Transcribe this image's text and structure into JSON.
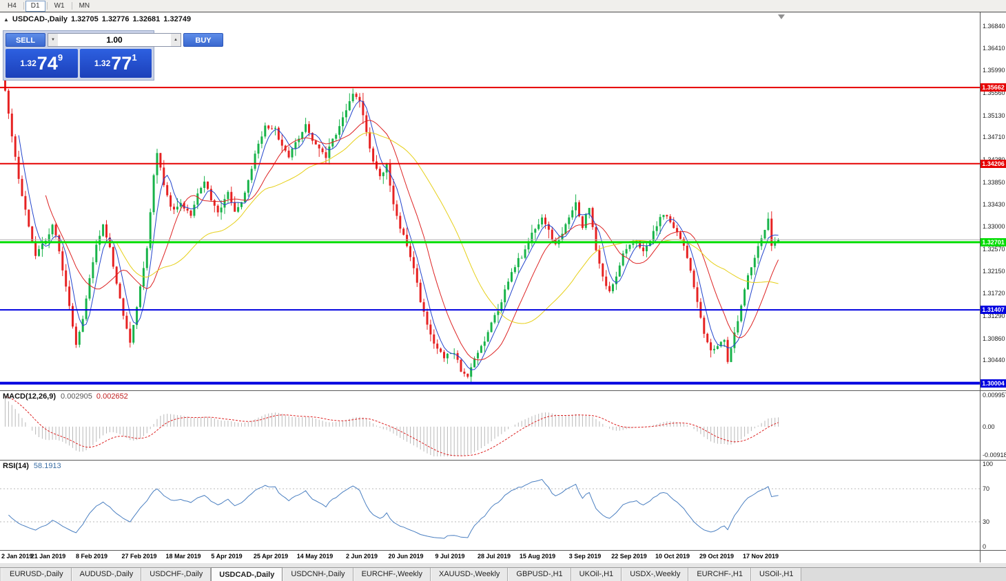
{
  "toolbar": {
    "timeframes": [
      {
        "label": "H4",
        "active": false
      },
      {
        "label": "D1",
        "active": true
      },
      {
        "label": "W1",
        "active": false
      },
      {
        "label": "MN",
        "active": false
      }
    ]
  },
  "chart": {
    "title": "USDCAD-,Daily",
    "ohlc": {
      "open": "1.32705",
      "high": "1.32776",
      "low": "1.32681",
      "close": "1.32749"
    },
    "scale": {
      "top": 1.371,
      "bottom": 1.2988
    },
    "bid_price": 1.32749,
    "price_axis_labels": [
      "1.36840",
      "1.36410",
      "1.35990",
      "1.35560",
      "1.35130",
      "1.34710",
      "1.34280",
      "1.33850",
      "1.33430",
      "1.33000",
      "1.32570",
      "1.32150",
      "1.31720",
      "1.31290",
      "1.30860",
      "1.30440"
    ]
  },
  "trade": {
    "sell_label": "SELL",
    "buy_label": "BUY",
    "volume": "1.00",
    "sell": {
      "prefix": "1.32",
      "big": "74",
      "pip": "9"
    },
    "buy": {
      "prefix": "1.32",
      "big": "77",
      "pip": "1"
    }
  },
  "chart_data": {
    "type": "candlestick",
    "symbol": "USDCAD",
    "timeframe": "Daily",
    "num_candles": 230,
    "current_candle": {
      "open": 1.32705,
      "high": 1.32776,
      "low": 1.32681,
      "close": 1.32749
    },
    "price_anchors": [
      [
        0,
        1.36
      ],
      [
        1,
        1.3565
      ],
      [
        3,
        1.347
      ],
      [
        5,
        1.3395
      ],
      [
        8,
        1.33
      ],
      [
        10,
        1.3245
      ],
      [
        13,
        1.327
      ],
      [
        15,
        1.3305
      ],
      [
        17,
        1.3255
      ],
      [
        19,
        1.318
      ],
      [
        21,
        1.311
      ],
      [
        22,
        1.3075
      ],
      [
        24,
        1.312
      ],
      [
        26,
        1.32
      ],
      [
        28,
        1.327
      ],
      [
        30,
        1.3305
      ],
      [
        32,
        1.326
      ],
      [
        34,
        1.319
      ],
      [
        36,
        1.313
      ],
      [
        38,
        1.3082
      ],
      [
        40,
        1.315
      ],
      [
        43,
        1.326
      ],
      [
        45,
        1.34
      ],
      [
        46,
        1.3442
      ],
      [
        48,
        1.338
      ],
      [
        50,
        1.3335
      ],
      [
        53,
        1.3345
      ],
      [
        56,
        1.332
      ],
      [
        58,
        1.3365
      ],
      [
        60,
        1.3385
      ],
      [
        62,
        1.3355
      ],
      [
        64,
        1.333
      ],
      [
        67,
        1.3365
      ],
      [
        69,
        1.333
      ],
      [
        71,
        1.3345
      ],
      [
        73,
        1.339
      ],
      [
        76,
        1.346
      ],
      [
        78,
        1.3492
      ],
      [
        81,
        1.3485
      ],
      [
        83,
        1.3455
      ],
      [
        85,
        1.3435
      ],
      [
        88,
        1.347
      ],
      [
        90,
        1.3495
      ],
      [
        92,
        1.3465
      ],
      [
        94,
        1.345
      ],
      [
        96,
        1.3435
      ],
      [
        98,
        1.3465
      ],
      [
        100,
        1.349
      ],
      [
        102,
        1.352
      ],
      [
        104,
        1.3552
      ],
      [
        106,
        1.354
      ],
      [
        108,
        1.348
      ],
      [
        110,
        1.3425
      ],
      [
        112,
        1.3395
      ],
      [
        114,
        1.342
      ],
      [
        116,
        1.334
      ],
      [
        118,
        1.33
      ],
      [
        120,
        1.326
      ],
      [
        122,
        1.322
      ],
      [
        124,
        1.316
      ],
      [
        126,
        1.311
      ],
      [
        128,
        1.3075
      ],
      [
        131,
        1.3048
      ],
      [
        134,
        1.3062
      ],
      [
        136,
        1.3022
      ],
      [
        138,
        1.3015
      ],
      [
        140,
        1.3042
      ],
      [
        142,
        1.307
      ],
      [
        144,
        1.31
      ],
      [
        146,
        1.313
      ],
      [
        148,
        1.3155
      ],
      [
        150,
        1.3195
      ],
      [
        152,
        1.3225
      ],
      [
        154,
        1.3245
      ],
      [
        156,
        1.327
      ],
      [
        158,
        1.3295
      ],
      [
        160,
        1.332
      ],
      [
        162,
        1.329
      ],
      [
        164,
        1.3265
      ],
      [
        166,
        1.3285
      ],
      [
        168,
        1.332
      ],
      [
        170,
        1.3345
      ],
      [
        172,
        1.33
      ],
      [
        174,
        1.334
      ],
      [
        176,
        1.3255
      ],
      [
        178,
        1.3205
      ],
      [
        180,
        1.3175
      ],
      [
        182,
        1.321
      ],
      [
        184,
        1.3245
      ],
      [
        186,
        1.3265
      ],
      [
        188,
        1.327
      ],
      [
        190,
        1.325
      ],
      [
        192,
        1.3275
      ],
      [
        194,
        1.33
      ],
      [
        196,
        1.3325
      ],
      [
        198,
        1.331
      ],
      [
        200,
        1.329
      ],
      [
        202,
        1.326
      ],
      [
        204,
        1.3215
      ],
      [
        206,
        1.315
      ],
      [
        208,
        1.3095
      ],
      [
        210,
        1.3065
      ],
      [
        212,
        1.3075
      ],
      [
        214,
        1.3085
      ],
      [
        215,
        1.3042
      ],
      [
        217,
        1.3095
      ],
      [
        219,
        1.315
      ],
      [
        221,
        1.3205
      ],
      [
        223,
        1.3245
      ],
      [
        225,
        1.328
      ],
      [
        227,
        1.331
      ],
      [
        228,
        1.3265
      ],
      [
        230,
        1.3275
      ]
    ],
    "horizontal_lines": [
      {
        "label": "1.35662",
        "value": 1.35662,
        "color": "#e60000",
        "width": 2
      },
      {
        "label": "1.34206",
        "value": 1.34206,
        "color": "#e60000",
        "width": 2
      },
      {
        "label": "1.32701",
        "value": 1.32701,
        "color": "#00dd00",
        "width": 3
      },
      {
        "label": "1.31407",
        "value": 1.31407,
        "color": "#0000e0",
        "width": 2
      },
      {
        "label": "1.30004",
        "value": 1.30004,
        "color": "#0000e0",
        "width": 4
      }
    ],
    "moving_averages": [
      {
        "period": 5,
        "color": "#2244cc"
      },
      {
        "period": 13,
        "color": "#dd2222"
      },
      {
        "period": 34,
        "color": "#e6cf16"
      }
    ],
    "x_axis_labels": [
      "2 Jan 2019",
      "21 Jan 2019",
      "8 Feb 2019",
      "27 Feb 2019",
      "18 Mar 2019",
      "5 Apr 2019",
      "25 Apr 2019",
      "14 May 2019",
      "2 Jun 2019",
      "20 Jun 2019",
      "9 Jul 2019",
      "28 Jul 2019",
      "15 Aug 2019",
      "3 Sep 2019",
      "22 Sep 2019",
      "10 Oct 2019",
      "29 Oct 2019",
      "17 Nov 2019"
    ]
  },
  "macd": {
    "label": "MACD(12,26,9)",
    "main_value": "0.002905",
    "signal_value": "0.002652",
    "axis_labels": {
      "max": "0.009957",
      "zero": "0.00",
      "min": "-0.009186"
    },
    "scale": {
      "max": 0.009957,
      "min": -0.009186
    }
  },
  "rsi": {
    "label": "RSI(14)",
    "value": "58.1913",
    "axis_labels": [
      "100",
      "70",
      "30",
      "0"
    ],
    "levels": [
      70,
      30
    ]
  },
  "icons": {
    "collapse": "▲",
    "spin_down": "▼",
    "spin_up": "▲"
  },
  "tabs": [
    {
      "label": "EURUSD-,Daily",
      "active": false
    },
    {
      "label": "AUDUSD-,Daily",
      "active": false
    },
    {
      "label": "USDCHF-,Daily",
      "active": false
    },
    {
      "label": "USDCAD-,Daily",
      "active": true
    },
    {
      "label": "USDCNH-,Daily",
      "active": false
    },
    {
      "label": "EURCHF-,Weekly",
      "active": false
    },
    {
      "label": "XAUUSD-,Weekly",
      "active": false
    },
    {
      "label": "GBPUSD-,H1",
      "active": false
    },
    {
      "label": "UKOil-,H1",
      "active": false
    },
    {
      "label": "USDX-,Weekly",
      "active": false
    },
    {
      "label": "EURCHF-,H1",
      "active": false
    },
    {
      "label": "USOil-,H1",
      "active": false
    }
  ],
  "colors": {
    "up": "#18b34a",
    "down": "#e62222",
    "macd_hist": "#b8b8b8",
    "macd_signal": "#dd2222",
    "rsi_line": "#4a7fc1",
    "bid_line": "#b0b0b0"
  }
}
